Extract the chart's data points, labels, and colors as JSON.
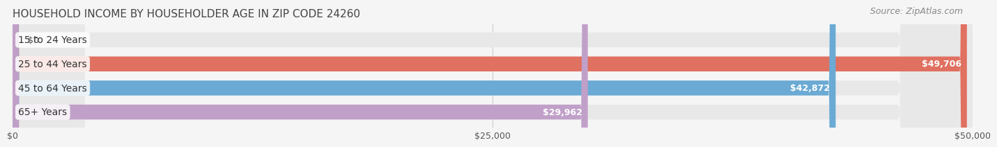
{
  "title": "HOUSEHOLD INCOME BY HOUSEHOLDER AGE IN ZIP CODE 24260",
  "source": "Source: ZipAtlas.com",
  "categories": [
    "15 to 24 Years",
    "25 to 44 Years",
    "45 to 64 Years",
    "65+ Years"
  ],
  "values": [
    0,
    49706,
    42872,
    29962
  ],
  "bar_colors": [
    "#f0c8a0",
    "#e07060",
    "#6aaad4",
    "#c0a0c8"
  ],
  "label_colors": [
    "#555555",
    "#ffffff",
    "#ffffff",
    "#555555"
  ],
  "value_labels": [
    "$0",
    "$49,706",
    "$42,872",
    "$29,962"
  ],
  "xlim": [
    0,
    50000
  ],
  "xticks": [
    0,
    25000,
    50000
  ],
  "xticklabels": [
    "$0",
    "$25,000",
    "$50,000"
  ],
  "background_color": "#f5f5f5",
  "bar_background_color": "#e8e8e8",
  "title_fontsize": 11,
  "source_fontsize": 9,
  "label_fontsize": 10,
  "value_fontsize": 9,
  "bar_height": 0.62,
  "fig_width": 14.06,
  "fig_height": 2.33
}
